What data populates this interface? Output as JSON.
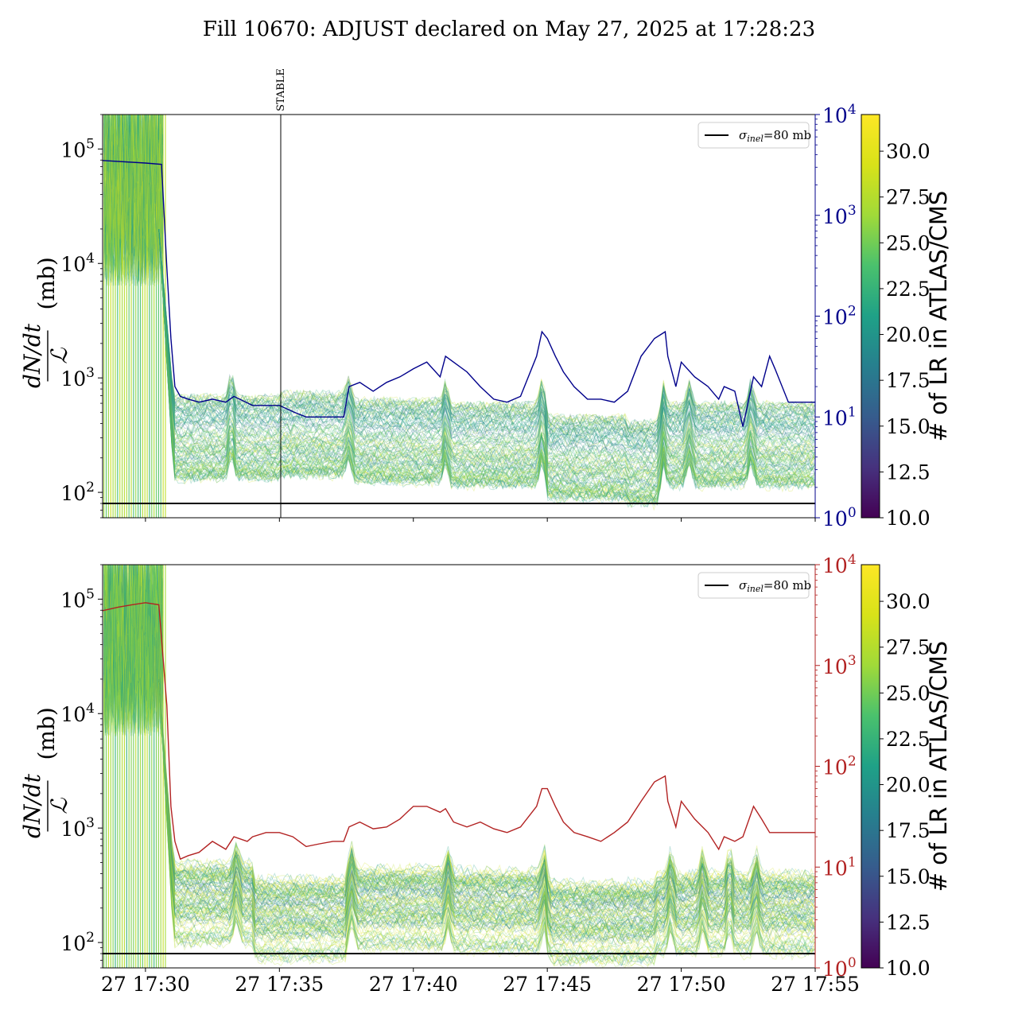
{
  "chart_data": {
    "title": "Fill 10670: ADJUST declared on May 27, 2025 at 17:28:23",
    "type": "line",
    "x_tick_labels": [
      "27 17:30",
      "27 17:35",
      "27 17:40",
      "27 17:45",
      "27 17:50",
      "27 17:55"
    ],
    "x_ticks_min": [
      30.0,
      35.0,
      40.0,
      45.0,
      50.0,
      55.0
    ],
    "xlim_min": [
      28.4,
      55.0
    ],
    "annotation": {
      "label": "STABLE",
      "x_min": 35.05
    },
    "legend": {
      "label_sigma": "σ",
      "label_sub": "inel",
      "label_rest": "=80 mb",
      "placement": "upper-right"
    },
    "reference_line_mb": 80,
    "colorbar": {
      "label": "# of LR in ATLAS/CMS",
      "range": [
        10.0,
        32.0
      ],
      "ticks": [
        "10.0",
        "12.5",
        "15.0",
        "17.5",
        "20.0",
        "22.5",
        "25.0",
        "27.5",
        "30.0"
      ],
      "colormap": "viridis"
    },
    "panels": [
      {
        "ylabel_num": "dN/dt",
        "ylabel_den": "ℒ",
        "ylabel_unit": "(mb)",
        "ylim": [
          60,
          200000
        ],
        "y_ticks": [
          {
            "base": "10",
            "exp": "2",
            "value": 100
          },
          {
            "base": "10",
            "exp": "3",
            "value": 1000
          },
          {
            "base": "10",
            "exp": "4",
            "value": 10000
          },
          {
            "base": "10",
            "exp": "5",
            "value": 100000
          }
        ],
        "y2lim": [
          1,
          10000
        ],
        "y2_color": "#00008b",
        "y2_ticks": [
          {
            "base": "10",
            "exp": "0",
            "value": 1
          },
          {
            "base": "10",
            "exp": "1",
            "value": 10
          },
          {
            "base": "10",
            "exp": "2",
            "value": 100
          },
          {
            "base": "10",
            "exp": "3",
            "value": 1000
          },
          {
            "base": "10",
            "exp": "4",
            "value": 10000
          }
        ],
        "y2_series": {
          "x_min": [
            28.4,
            30.0,
            30.6,
            30.8,
            30.95,
            31.1,
            31.3,
            31.6,
            32.0,
            32.5,
            33.0,
            33.3,
            34.0,
            35.0,
            35.6,
            36.0,
            36.5,
            37.0,
            37.4,
            37.6,
            38.0,
            38.5,
            39.0,
            39.5,
            40.0,
            40.5,
            41.0,
            41.2,
            41.5,
            42.0,
            42.5,
            43.0,
            43.5,
            44.0,
            44.6,
            44.8,
            45.0,
            45.3,
            45.6,
            46.0,
            46.5,
            47.0,
            47.5,
            48.0,
            48.5,
            49.0,
            49.4,
            49.5,
            49.8,
            50.0,
            50.5,
            51.0,
            51.4,
            51.6,
            52.0,
            52.3,
            52.7,
            53.0,
            53.3,
            53.5,
            54.0,
            55.0
          ],
          "y": [
            3500,
            3300,
            3200,
            300,
            60,
            20,
            16,
            15,
            14,
            15,
            14,
            16,
            13,
            13,
            11,
            10,
            10,
            10,
            10,
            20,
            22,
            18,
            22,
            25,
            30,
            35,
            25,
            40,
            35,
            28,
            20,
            15,
            14,
            16,
            40,
            70,
            60,
            40,
            28,
            20,
            15,
            15,
            14,
            18,
            40,
            60,
            70,
            40,
            20,
            35,
            25,
            20,
            15,
            20,
            18,
            8,
            25,
            20,
            40,
            30,
            14,
            14
          ]
        }
      },
      {
        "ylabel_num": "dN/dt",
        "ylabel_den": "ℒ",
        "ylabel_unit": "(mb)",
        "ylim": [
          60,
          200000
        ],
        "y_ticks": [
          {
            "base": "10",
            "exp": "2",
            "value": 100
          },
          {
            "base": "10",
            "exp": "3",
            "value": 1000
          },
          {
            "base": "10",
            "exp": "4",
            "value": 10000
          },
          {
            "base": "10",
            "exp": "5",
            "value": 100000
          }
        ],
        "y2lim": [
          1,
          10000
        ],
        "y2_color": "#b22222",
        "y2_ticks": [
          {
            "base": "10",
            "exp": "0",
            "value": 1
          },
          {
            "base": "10",
            "exp": "1",
            "value": 10
          },
          {
            "base": "10",
            "exp": "2",
            "value": 100
          },
          {
            "base": "10",
            "exp": "3",
            "value": 1000
          },
          {
            "base": "10",
            "exp": "4",
            "value": 10000
          }
        ],
        "y2_series": {
          "x_min": [
            28.4,
            29.0,
            29.5,
            30.0,
            30.5,
            30.8,
            30.95,
            31.1,
            31.3,
            31.6,
            32.0,
            32.5,
            33.0,
            33.3,
            33.8,
            34.0,
            34.5,
            35.0,
            35.5,
            36.0,
            36.5,
            37.0,
            37.4,
            37.6,
            38.0,
            38.5,
            39.0,
            39.5,
            40.0,
            40.5,
            41.0,
            41.2,
            41.5,
            42.0,
            42.5,
            43.0,
            43.5,
            44.0,
            44.6,
            44.8,
            45.0,
            45.3,
            45.6,
            46.0,
            46.5,
            47.0,
            47.5,
            48.0,
            48.5,
            49.0,
            49.4,
            49.5,
            49.8,
            50.0,
            50.5,
            51.0,
            51.4,
            51.6,
            52.0,
            52.3,
            52.7,
            53.0,
            53.3,
            53.5,
            54.0,
            55.0
          ],
          "y": [
            3500,
            3800,
            4000,
            4200,
            4000,
            400,
            40,
            18,
            12,
            13,
            14,
            18,
            15,
            20,
            18,
            20,
            22,
            22,
            20,
            16,
            17,
            18,
            18,
            25,
            28,
            24,
            25,
            30,
            40,
            40,
            35,
            38,
            28,
            25,
            28,
            24,
            22,
            25,
            40,
            60,
            60,
            40,
            28,
            22,
            20,
            18,
            22,
            28,
            45,
            70,
            80,
            45,
            25,
            45,
            30,
            22,
            15,
            20,
            18,
            20,
            40,
            30,
            22,
            22,
            22,
            22
          ]
        }
      }
    ]
  }
}
